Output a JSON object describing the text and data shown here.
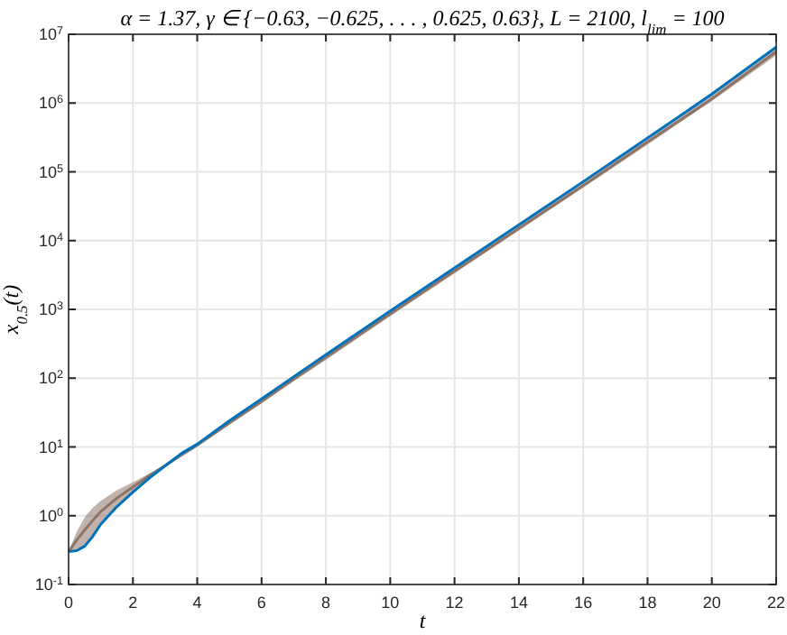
{
  "chart_data": {
    "type": "line",
    "title": "α = 1.37, γ ∈ {−0.63, −0.625, . . . , 0.625, 0.63}, L = 2100, l$_{lim}$ = 100",
    "xlabel": "t",
    "ylabel": "x$_{0.5}$(t)",
    "x": [
      0,
      0.25,
      0.5,
      0.75,
      1,
      1.5,
      2,
      2.5,
      3,
      3.5,
      4,
      5,
      6,
      7,
      8,
      10,
      12,
      14,
      16,
      18,
      20,
      22
    ],
    "series": [
      {
        "color": "#8c7566",
        "values": [
          0.3,
          0.44,
          0.62,
          0.85,
          1.15,
          1.8,
          2.6,
          3.8,
          5.35,
          7.6,
          10.7,
          22.5,
          46,
          97,
          200,
          860,
          3600,
          15000,
          63000,
          270000,
          1150000.0,
          5600000.0
        ],
        "lower": [
          0.3,
          0.31,
          0.36,
          0.5,
          0.75,
          1.35,
          2.2,
          3.5,
          5.2,
          7.2,
          10,
          21,
          43,
          90,
          185,
          800,
          3350,
          14000,
          59000,
          250000,
          1070000.0,
          4900000.0
        ],
        "upper": [
          0.3,
          0.58,
          0.95,
          1.3,
          1.65,
          2.35,
          3.05,
          4.1,
          5.5,
          8,
          11.5,
          24,
          50,
          105,
          220,
          950,
          4000,
          17000,
          72000,
          310000,
          1350000.0,
          6500000.0
        ]
      },
      {
        "color": "#0072bd",
        "values": [
          0.3,
          0.31,
          0.36,
          0.5,
          0.75,
          1.35,
          2.2,
          3.5,
          5.3,
          8,
          11,
          24,
          50,
          105,
          220,
          950,
          4000,
          17000,
          72000,
          310000,
          1350000.0,
          6500000.0
        ]
      }
    ],
    "xlim": [
      0,
      22
    ],
    "xticks": [
      0,
      2,
      4,
      6,
      8,
      10,
      12,
      14,
      16,
      18,
      20,
      22
    ],
    "ylim": [
      0.1,
      10000000
    ],
    "yticks": [
      {
        "value": 0.1,
        "label": "10$^{-1}$"
      },
      {
        "value": 1,
        "label": "10$^{0}$"
      },
      {
        "value": 10,
        "label": "10$^{1}$"
      },
      {
        "value": 100,
        "label": "10$^{2}$"
      },
      {
        "value": 1000,
        "label": "10$^{3}$"
      },
      {
        "value": 10000,
        "label": "10$^{4}$"
      },
      {
        "value": 100000,
        "label": "10$^{5}$"
      },
      {
        "value": 1000000,
        "label": "10$^{6}$"
      },
      {
        "value": 10000000,
        "label": "10$^{7}$"
      }
    ],
    "log": "y",
    "grid": true
  }
}
